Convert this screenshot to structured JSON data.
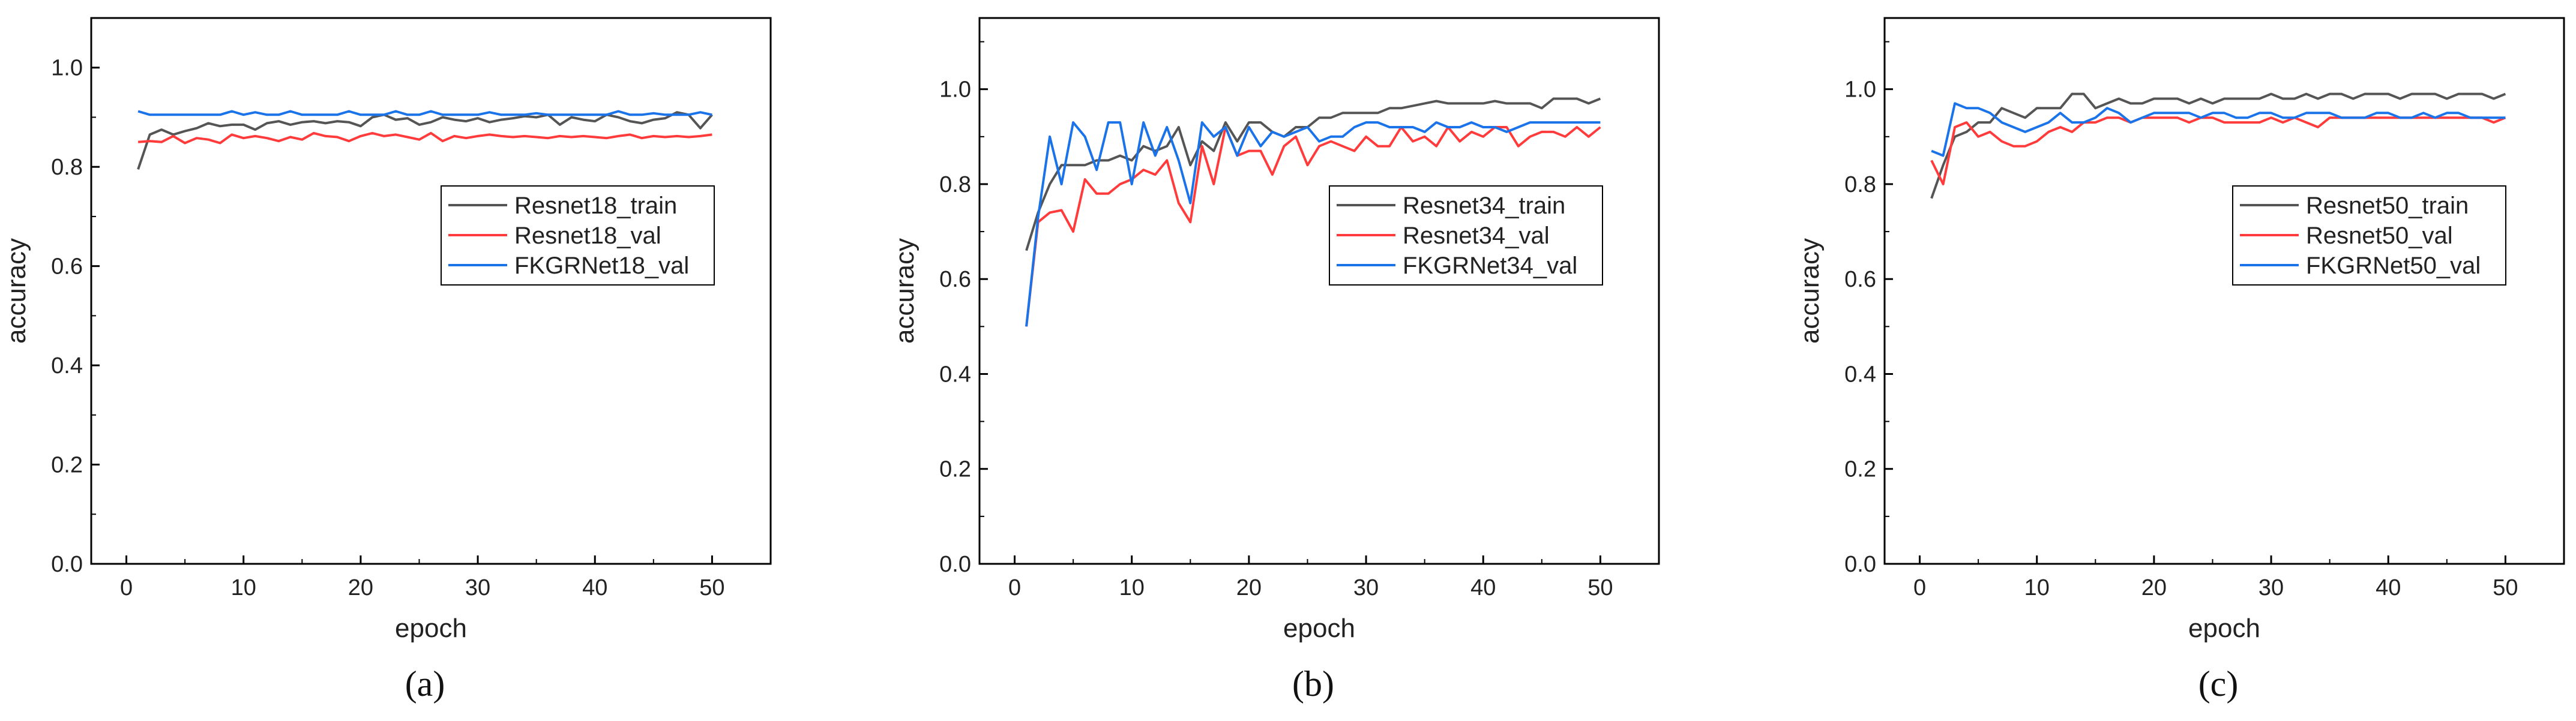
{
  "colors": {
    "train": "#555555",
    "val": "#ff3b3b",
    "fkgr": "#1a73e8",
    "axis": "#000000"
  },
  "chart_data": [
    {
      "type": "line",
      "caption": "(a)",
      "title": "",
      "xlabel": "epoch",
      "ylabel": "accuracy",
      "xlim": [
        -3,
        55
      ],
      "ylim": [
        0.0,
        1.1
      ],
      "xticks": [
        0,
        10,
        20,
        30,
        40,
        50
      ],
      "yticks": [
        0.0,
        0.2,
        0.4,
        0.6,
        0.8,
        1.0
      ],
      "ytick_labels": [
        "0.0",
        "0.2",
        "0.4",
        "0.6",
        "0.8",
        "1.0"
      ],
      "legend_position": "center-right",
      "x": [
        1,
        2,
        3,
        4,
        5,
        6,
        7,
        8,
        9,
        10,
        11,
        12,
        13,
        14,
        15,
        16,
        17,
        18,
        19,
        20,
        21,
        22,
        23,
        24,
        25,
        26,
        27,
        28,
        29,
        30,
        31,
        32,
        33,
        34,
        35,
        36,
        37,
        38,
        39,
        40,
        41,
        42,
        43,
        44,
        45,
        46,
        47,
        48,
        49,
        50
      ],
      "series": [
        {
          "name": "Resnet18_train",
          "color_key": "train",
          "values": [
            0.795,
            0.865,
            0.875,
            0.865,
            0.872,
            0.878,
            0.888,
            0.882,
            0.885,
            0.885,
            0.875,
            0.888,
            0.892,
            0.885,
            0.89,
            0.892,
            0.888,
            0.892,
            0.89,
            0.882,
            0.9,
            0.905,
            0.895,
            0.898,
            0.885,
            0.89,
            0.9,
            0.895,
            0.892,
            0.898,
            0.89,
            0.895,
            0.898,
            0.902,
            0.9,
            0.905,
            0.885,
            0.9,
            0.895,
            0.892,
            0.905,
            0.9,
            0.892,
            0.888,
            0.895,
            0.898,
            0.91,
            0.905,
            0.878,
            0.905
          ]
        },
        {
          "name": "Resnet18_val",
          "color_key": "val",
          "values": [
            0.85,
            0.852,
            0.85,
            0.862,
            0.848,
            0.858,
            0.855,
            0.848,
            0.865,
            0.858,
            0.862,
            0.858,
            0.852,
            0.86,
            0.855,
            0.868,
            0.862,
            0.86,
            0.852,
            0.862,
            0.868,
            0.862,
            0.865,
            0.86,
            0.855,
            0.868,
            0.852,
            0.862,
            0.858,
            0.862,
            0.865,
            0.862,
            0.86,
            0.862,
            0.86,
            0.858,
            0.862,
            0.86,
            0.862,
            0.86,
            0.858,
            0.862,
            0.865,
            0.858,
            0.862,
            0.86,
            0.862,
            0.86,
            0.862,
            0.865
          ]
        },
        {
          "name": "FKGRNet18_val",
          "color_key": "fkgr",
          "values": [
            0.912,
            0.905,
            0.905,
            0.905,
            0.905,
            0.905,
            0.905,
            0.905,
            0.912,
            0.905,
            0.91,
            0.905,
            0.905,
            0.912,
            0.905,
            0.905,
            0.905,
            0.905,
            0.912,
            0.905,
            0.905,
            0.905,
            0.912,
            0.905,
            0.905,
            0.912,
            0.905,
            0.905,
            0.905,
            0.905,
            0.91,
            0.905,
            0.905,
            0.905,
            0.908,
            0.905,
            0.905,
            0.905,
            0.905,
            0.905,
            0.905,
            0.912,
            0.905,
            0.905,
            0.908,
            0.905,
            0.905,
            0.905,
            0.91,
            0.905
          ]
        }
      ]
    },
    {
      "type": "line",
      "caption": "(b)",
      "title": "",
      "xlabel": "epoch",
      "ylabel": "accuracy",
      "xlim": [
        -3,
        55
      ],
      "ylim": [
        0.0,
        1.15
      ],
      "xticks": [
        0,
        10,
        20,
        30,
        40,
        50
      ],
      "yticks": [
        0.0,
        0.2,
        0.4,
        0.6,
        0.8,
        1.0
      ],
      "ytick_labels": [
        "0.0",
        "0.2",
        "0.4",
        "0.6",
        "0.8",
        "1.0"
      ],
      "legend_position": "center-right",
      "x": [
        1,
        2,
        3,
        4,
        5,
        6,
        7,
        8,
        9,
        10,
        11,
        12,
        13,
        14,
        15,
        16,
        17,
        18,
        19,
        20,
        21,
        22,
        23,
        24,
        25,
        26,
        27,
        28,
        29,
        30,
        31,
        32,
        33,
        34,
        35,
        36,
        37,
        38,
        39,
        40,
        41,
        42,
        43,
        44,
        45,
        46,
        47,
        48,
        49,
        50
      ],
      "series": [
        {
          "name": "Resnet34_train",
          "color_key": "train",
          "values": [
            0.66,
            0.74,
            0.8,
            0.84,
            0.84,
            0.84,
            0.85,
            0.85,
            0.86,
            0.85,
            0.88,
            0.87,
            0.88,
            0.92,
            0.84,
            0.89,
            0.87,
            0.93,
            0.89,
            0.93,
            0.93,
            0.91,
            0.9,
            0.92,
            0.92,
            0.94,
            0.94,
            0.95,
            0.95,
            0.95,
            0.95,
            0.96,
            0.96,
            0.965,
            0.97,
            0.975,
            0.97,
            0.97,
            0.97,
            0.97,
            0.975,
            0.97,
            0.97,
            0.97,
            0.96,
            0.98,
            0.98,
            0.98,
            0.97,
            0.98
          ]
        },
        {
          "name": "Resnet34_val",
          "color_key": "val",
          "values": [
            0.5,
            0.72,
            0.74,
            0.745,
            0.7,
            0.81,
            0.78,
            0.78,
            0.8,
            0.81,
            0.83,
            0.82,
            0.85,
            0.76,
            0.72,
            0.88,
            0.8,
            0.92,
            0.86,
            0.87,
            0.87,
            0.82,
            0.88,
            0.9,
            0.84,
            0.88,
            0.89,
            0.88,
            0.87,
            0.9,
            0.88,
            0.88,
            0.92,
            0.89,
            0.9,
            0.88,
            0.92,
            0.89,
            0.91,
            0.9,
            0.92,
            0.92,
            0.88,
            0.9,
            0.91,
            0.91,
            0.9,
            0.92,
            0.9,
            0.92
          ]
        },
        {
          "name": "FKGRNet34_val",
          "color_key": "fkgr",
          "values": [
            0.5,
            0.73,
            0.9,
            0.8,
            0.93,
            0.9,
            0.83,
            0.93,
            0.93,
            0.8,
            0.93,
            0.86,
            0.92,
            0.85,
            0.76,
            0.93,
            0.9,
            0.92,
            0.86,
            0.92,
            0.88,
            0.91,
            0.9,
            0.91,
            0.92,
            0.89,
            0.9,
            0.9,
            0.92,
            0.93,
            0.93,
            0.92,
            0.92,
            0.92,
            0.91,
            0.93,
            0.92,
            0.92,
            0.93,
            0.92,
            0.92,
            0.91,
            0.92,
            0.93,
            0.93,
            0.93,
            0.93,
            0.93,
            0.93,
            0.93
          ]
        }
      ]
    },
    {
      "type": "line",
      "caption": "(c)",
      "title": "",
      "xlabel": "epoch",
      "ylabel": "accuracy",
      "xlim": [
        -3,
        55
      ],
      "ylim": [
        0.0,
        1.15
      ],
      "xticks": [
        0,
        10,
        20,
        30,
        40,
        50
      ],
      "yticks": [
        0.0,
        0.2,
        0.4,
        0.6,
        0.8,
        1.0
      ],
      "ytick_labels": [
        "0.0",
        "0.2",
        "0.4",
        "0.6",
        "0.8",
        "1.0"
      ],
      "legend_position": "center-right",
      "x": [
        1,
        2,
        3,
        4,
        5,
        6,
        7,
        8,
        9,
        10,
        11,
        12,
        13,
        14,
        15,
        16,
        17,
        18,
        19,
        20,
        21,
        22,
        23,
        24,
        25,
        26,
        27,
        28,
        29,
        30,
        31,
        32,
        33,
        34,
        35,
        36,
        37,
        38,
        39,
        40,
        41,
        42,
        43,
        44,
        45,
        46,
        47,
        48,
        49,
        50
      ],
      "series": [
        {
          "name": "Resnet50_train",
          "color_key": "train",
          "values": [
            0.77,
            0.84,
            0.9,
            0.91,
            0.93,
            0.93,
            0.96,
            0.95,
            0.94,
            0.96,
            0.96,
            0.96,
            0.99,
            0.99,
            0.96,
            0.97,
            0.98,
            0.97,
            0.97,
            0.98,
            0.98,
            0.98,
            0.97,
            0.98,
            0.97,
            0.98,
            0.98,
            0.98,
            0.98,
            0.99,
            0.98,
            0.98,
            0.99,
            0.98,
            0.99,
            0.99,
            0.98,
            0.99,
            0.99,
            0.99,
            0.98,
            0.99,
            0.99,
            0.99,
            0.98,
            0.99,
            0.99,
            0.99,
            0.98,
            0.99
          ]
        },
        {
          "name": "Resnet50_val",
          "color_key": "val",
          "values": [
            0.85,
            0.8,
            0.92,
            0.93,
            0.9,
            0.91,
            0.89,
            0.88,
            0.88,
            0.89,
            0.91,
            0.92,
            0.91,
            0.93,
            0.93,
            0.94,
            0.94,
            0.93,
            0.94,
            0.94,
            0.94,
            0.94,
            0.93,
            0.94,
            0.94,
            0.93,
            0.93,
            0.93,
            0.93,
            0.94,
            0.93,
            0.94,
            0.93,
            0.92,
            0.94,
            0.94,
            0.94,
            0.94,
            0.94,
            0.94,
            0.94,
            0.94,
            0.94,
            0.94,
            0.94,
            0.94,
            0.94,
            0.94,
            0.93,
            0.94
          ]
        },
        {
          "name": "FKGRNet50_val",
          "color_key": "fkgr",
          "values": [
            0.87,
            0.86,
            0.97,
            0.96,
            0.96,
            0.95,
            0.93,
            0.92,
            0.91,
            0.92,
            0.93,
            0.95,
            0.93,
            0.93,
            0.94,
            0.96,
            0.95,
            0.93,
            0.94,
            0.95,
            0.95,
            0.95,
            0.95,
            0.94,
            0.95,
            0.95,
            0.94,
            0.94,
            0.95,
            0.95,
            0.94,
            0.94,
            0.95,
            0.95,
            0.95,
            0.94,
            0.94,
            0.94,
            0.95,
            0.95,
            0.94,
            0.94,
            0.95,
            0.94,
            0.95,
            0.95,
            0.94,
            0.94,
            0.94,
            0.94
          ]
        }
      ]
    }
  ]
}
